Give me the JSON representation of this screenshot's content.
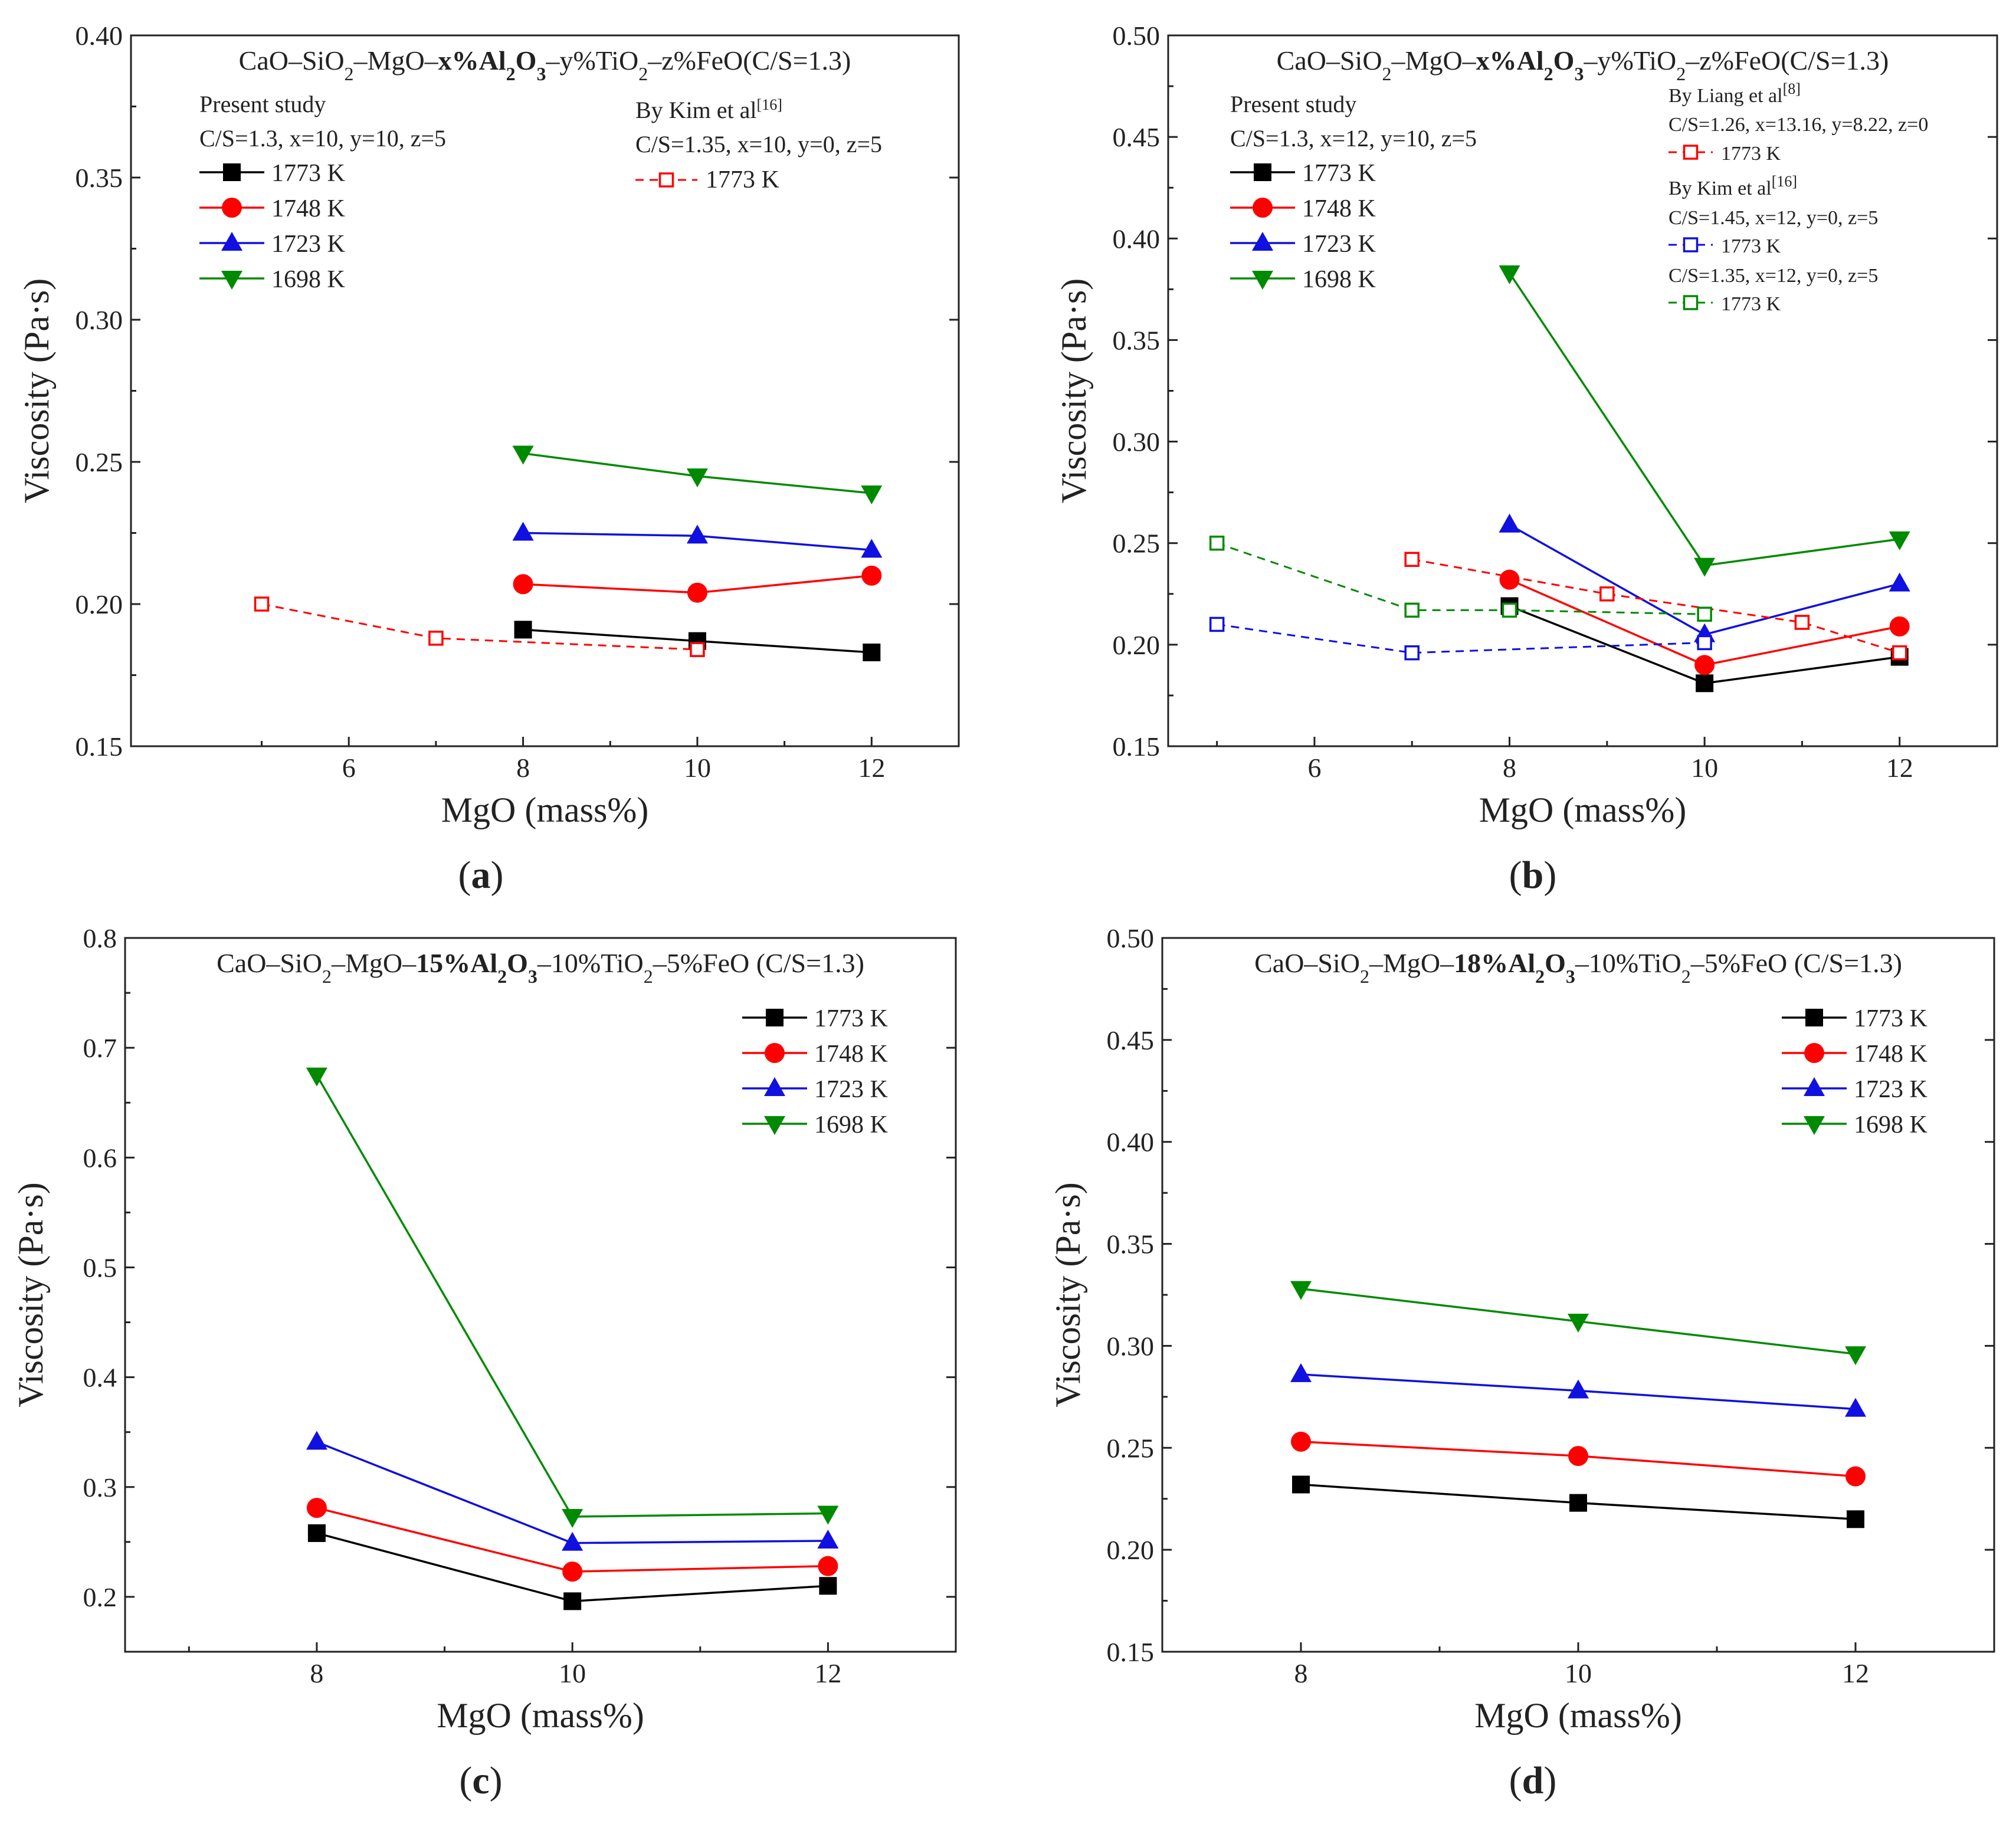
{
  "colors": {
    "black": "#000000",
    "red": "#ff0000",
    "blue": "#1010e0",
    "green": "#008a00"
  },
  "chart_data": [
    {
      "type": "line",
      "panel": "(a)",
      "title": "CaO–SiO2–MgO–x%Al2O3–y%TiO2–z%FeO(C/S=1.3)",
      "title_parts": [
        "CaO–SiO",
        "2",
        "–MgO–",
        "x%Al",
        "2",
        "O",
        "3",
        "–y%TiO",
        "2",
        "–z%FeO(C/S=1.3)"
      ],
      "xlabel": "MgO (mass%)",
      "ylabel": "Viscosity (Pa·s)",
      "xlim": [
        3.5,
        13
      ],
      "ylim": [
        0.15,
        0.4
      ],
      "xticks": [
        6,
        8,
        10,
        12
      ],
      "xtick_labels": [
        "6",
        "8",
        "10",
        "12"
      ],
      "yticks": [
        0.15,
        0.2,
        0.25,
        0.3,
        0.35,
        0.4
      ],
      "ytick_labels": [
        "0.15",
        "0.20",
        "0.25",
        "0.30",
        "0.35",
        "0.40"
      ],
      "notes": [
        {
          "id": "present",
          "text": "Present study"
        },
        {
          "id": "present-cond",
          "text": "C/S=1.3, x=10, y=10, z=5"
        },
        {
          "id": "kim",
          "text": "By Kim et al",
          "sup": "[16]"
        },
        {
          "id": "kim-cond",
          "text": "C/S=1.35, x=10, y=0, z=5"
        }
      ],
      "series": [
        {
          "name": "1773 K",
          "color": "black",
          "marker": "square",
          "x": [
            8,
            10,
            12
          ],
          "values": [
            0.191,
            0.187,
            0.183
          ]
        },
        {
          "name": "1748 K",
          "color": "red",
          "marker": "circle",
          "x": [
            8,
            10,
            12
          ],
          "values": [
            0.207,
            0.204,
            0.21
          ]
        },
        {
          "name": "1723 K",
          "color": "blue",
          "marker": "triangle-up",
          "x": [
            8,
            10,
            12
          ],
          "values": [
            0.225,
            0.224,
            0.219
          ]
        },
        {
          "name": "1698 K",
          "color": "green",
          "marker": "triangle-down",
          "x": [
            8,
            10,
            12
          ],
          "values": [
            0.253,
            0.245,
            0.239
          ]
        },
        {
          "name": "1773 K",
          "color": "red",
          "marker": "open-square",
          "dashed": true,
          "group": "Kim",
          "x": [
            5,
            7,
            10
          ],
          "values": [
            0.2,
            0.188,
            0.184
          ]
        }
      ]
    },
    {
      "type": "line",
      "panel": "(b)",
      "title": "CaO–SiO2–MgO–x%Al2O3–y%TiO2–z%FeO(C/S=1.3)",
      "title_parts": [
        "CaO–SiO",
        "2",
        "–MgO–",
        "x%Al",
        "2",
        "O",
        "3",
        "–y%TiO",
        "2",
        "–z%FeO(C/S=1.3)"
      ],
      "xlabel": "MgO (mass%)",
      "ylabel": "Viscosity (Pa·s)",
      "xlim": [
        4.5,
        13
      ],
      "ylim": [
        0.15,
        0.5
      ],
      "xticks": [
        6,
        8,
        10,
        12
      ],
      "xtick_labels": [
        "6",
        "8",
        "10",
        "12"
      ],
      "yticks": [
        0.15,
        0.2,
        0.25,
        0.3,
        0.35,
        0.4,
        0.45,
        0.5
      ],
      "ytick_labels": [
        "0.15",
        "0.20",
        "0.25",
        "0.30",
        "0.35",
        "0.40",
        "0.45",
        "0.50"
      ],
      "notes": [
        {
          "id": "present",
          "text": "Present study"
        },
        {
          "id": "present-cond",
          "text": "C/S=1.3, x=12, y=10, z=5"
        },
        {
          "id": "liang",
          "text": "By Liang et al",
          "sup": "[8]"
        },
        {
          "id": "liang-cond",
          "text": "C/S=1.26, x=13.16, y=8.22, z=0"
        },
        {
          "id": "kim",
          "text": "By Kim et al",
          "sup": "[16]"
        },
        {
          "id": "kim-cond-1",
          "text": "C/S=1.45, x=12, y=0, z=5"
        },
        {
          "id": "kim-cond-2",
          "text": "C/S=1.35, x=12, y=0, z=5"
        }
      ],
      "series": [
        {
          "name": "1773 K",
          "color": "black",
          "marker": "square",
          "x": [
            8,
            10,
            12
          ],
          "values": [
            0.219,
            0.181,
            0.194
          ]
        },
        {
          "name": "1748 K",
          "color": "red",
          "marker": "circle",
          "x": [
            8,
            10,
            12
          ],
          "values": [
            0.232,
            0.19,
            0.209
          ]
        },
        {
          "name": "1723 K",
          "color": "blue",
          "marker": "triangle-up",
          "x": [
            8,
            10,
            12
          ],
          "values": [
            0.259,
            0.205,
            0.23
          ]
        },
        {
          "name": "1698 K",
          "color": "green",
          "marker": "triangle-down",
          "x": [
            8,
            10,
            12
          ],
          "values": [
            0.383,
            0.239,
            0.252
          ]
        },
        {
          "name": "1773 K",
          "color": "red",
          "marker": "open-square",
          "dashed": true,
          "group": "Liang",
          "x": [
            7,
            9,
            11,
            12
          ],
          "values": [
            0.242,
            0.225,
            0.211,
            0.196
          ]
        },
        {
          "name": "1773 K",
          "color": "blue",
          "marker": "open-square",
          "dashed": true,
          "group": "Kim C/S=1.45",
          "x": [
            5,
            7,
            10
          ],
          "values": [
            0.21,
            0.196,
            0.201
          ]
        },
        {
          "name": "1773 K",
          "color": "green",
          "marker": "open-square",
          "dashed": true,
          "group": "Kim C/S=1.35",
          "x": [
            5,
            7,
            8,
            10
          ],
          "values": [
            0.25,
            0.217,
            0.217,
            0.215
          ]
        }
      ]
    },
    {
      "type": "line",
      "panel": "(c)",
      "title": "CaO–SiO2–MgO–15%Al2O3–10%TiO2–5%FeO (C/S=1.3)",
      "title_parts": [
        "CaO–SiO",
        "2",
        "–MgO–",
        "15%Al",
        "2",
        "O",
        "3",
        "–10%TiO",
        "2",
        "–5%FeO (C/S=1.3)"
      ],
      "xlabel": "MgO (mass%)",
      "ylabel": "Viscosity (Pa·s)",
      "xlim": [
        6.5,
        13
      ],
      "ylim": [
        0.15,
        0.8
      ],
      "xticks": [
        8,
        10,
        12
      ],
      "xtick_labels": [
        "8",
        "10",
        "12"
      ],
      "yticks": [
        0.2,
        0.3,
        0.4,
        0.5,
        0.6,
        0.7,
        0.8
      ],
      "ytick_labels": [
        "0.2",
        "0.3",
        "0.4",
        "0.5",
        "0.6",
        "0.7",
        "0.8"
      ],
      "notes": [],
      "series": [
        {
          "name": "1773 K",
          "color": "black",
          "marker": "square",
          "x": [
            8,
            10,
            12
          ],
          "values": [
            0.258,
            0.196,
            0.21
          ]
        },
        {
          "name": "1748 K",
          "color": "red",
          "marker": "circle",
          "x": [
            8,
            10,
            12
          ],
          "values": [
            0.281,
            0.223,
            0.228
          ]
        },
        {
          "name": "1723 K",
          "color": "blue",
          "marker": "triangle-up",
          "x": [
            8,
            10,
            12
          ],
          "values": [
            0.341,
            0.249,
            0.251
          ]
        },
        {
          "name": "1698 K",
          "color": "green",
          "marker": "triangle-down",
          "x": [
            8,
            10,
            12
          ],
          "values": [
            0.675,
            0.273,
            0.276
          ]
        }
      ]
    },
    {
      "type": "line",
      "panel": "(d)",
      "title": "CaO–SiO2–MgO–18%Al2O3–10%TiO2–5%FeO (C/S=1.3)",
      "title_parts": [
        "CaO–SiO",
        "2",
        "–MgO–",
        "18%Al",
        "2",
        "O",
        "3",
        "–10%TiO",
        "2",
        "–5%FeO (C/S=1.3)"
      ],
      "xlabel": "MgO (mass%)",
      "ylabel": "Viscosity (Pa·s)",
      "xlim": [
        7.0,
        13.0
      ],
      "ylim": [
        0.15,
        0.5
      ],
      "xticks": [
        8,
        10,
        12
      ],
      "xtick_labels": [
        "8",
        "10",
        "12"
      ],
      "yticks": [
        0.15,
        0.2,
        0.25,
        0.3,
        0.35,
        0.4,
        0.45,
        0.5
      ],
      "ytick_labels": [
        "0.15",
        "0.20",
        "0.25",
        "0.30",
        "0.35",
        "0.40",
        "0.45",
        "0.50"
      ],
      "notes": [],
      "series": [
        {
          "name": "1773 K",
          "color": "black",
          "marker": "square",
          "x": [
            8,
            10,
            12
          ],
          "values": [
            0.232,
            0.223,
            0.215
          ]
        },
        {
          "name": "1748 K",
          "color": "red",
          "marker": "circle",
          "x": [
            8,
            10,
            12
          ],
          "values": [
            0.253,
            0.246,
            0.236
          ]
        },
        {
          "name": "1723 K",
          "color": "blue",
          "marker": "triangle-up",
          "x": [
            8,
            10,
            12
          ],
          "values": [
            0.286,
            0.278,
            0.269
          ]
        },
        {
          "name": "1698 K",
          "color": "green",
          "marker": "triangle-down",
          "x": [
            8,
            10,
            12
          ],
          "values": [
            0.328,
            0.312,
            0.296
          ]
        }
      ]
    }
  ]
}
